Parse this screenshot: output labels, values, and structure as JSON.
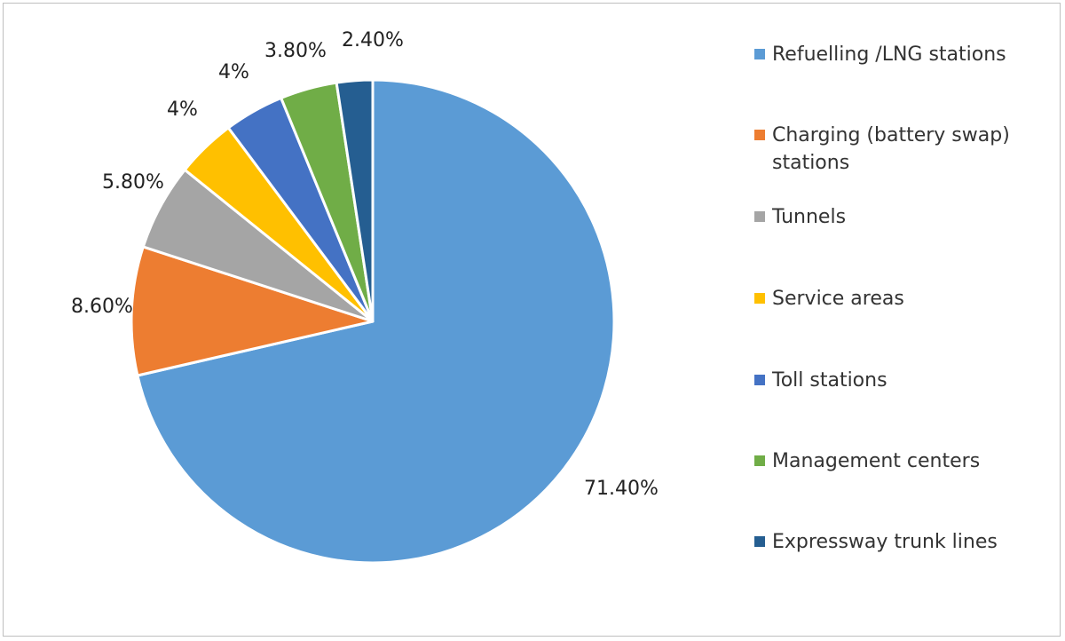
{
  "chart_data": {
    "type": "pie",
    "title": "",
    "legend_position": "right",
    "start_angle_deg": 0,
    "direction": "clockwise",
    "slices": [
      {
        "label_lines": [
          "Refuelling /LNG stations"
        ],
        "value": 71.4,
        "value_label": "71.40%",
        "color": "#5B9BD5"
      },
      {
        "label_lines": [
          "Charging (battery swap)",
          "stations"
        ],
        "value": 8.6,
        "value_label": "8.60%",
        "color": "#ED7D31"
      },
      {
        "label_lines": [
          "Tunnels"
        ],
        "value": 5.8,
        "value_label": "5.80%",
        "color": "#A5A5A5"
      },
      {
        "label_lines": [
          "Service areas"
        ],
        "value": 4,
        "value_label": "4%",
        "color": "#FFC000"
      },
      {
        "label_lines": [
          "Toll stations"
        ],
        "value": 4,
        "value_label": "4%",
        "color": "#4472C4"
      },
      {
        "label_lines": [
          "Management centers"
        ],
        "value": 3.8,
        "value_label": "3.80%",
        "color": "#70AD47"
      },
      {
        "label_lines": [
          "Expressway trunk lines"
        ],
        "value": 2.4,
        "value_label": "2.40%",
        "color": "#255E91"
      }
    ]
  }
}
